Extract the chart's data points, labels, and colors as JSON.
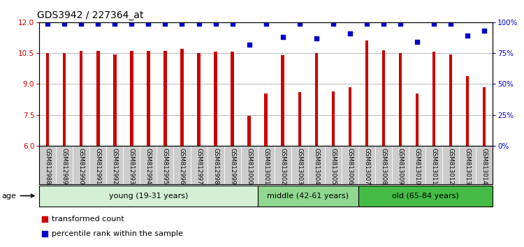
{
  "title": "GDS3942 / 227364_at",
  "samples": [
    "GSM812988",
    "GSM812989",
    "GSM812990",
    "GSM812991",
    "GSM812992",
    "GSM812993",
    "GSM812994",
    "GSM812995",
    "GSM812996",
    "GSM812997",
    "GSM812998",
    "GSM812999",
    "GSM813000",
    "GSM813001",
    "GSM813002",
    "GSM813003",
    "GSM813004",
    "GSM813005",
    "GSM813006",
    "GSM813007",
    "GSM813008",
    "GSM813009",
    "GSM813010",
    "GSM813011",
    "GSM813012",
    "GSM813013",
    "GSM813014"
  ],
  "bar_values": [
    10.5,
    10.5,
    10.62,
    10.62,
    10.44,
    10.62,
    10.62,
    10.62,
    10.72,
    10.52,
    10.56,
    10.56,
    7.45,
    8.55,
    10.4,
    8.6,
    10.5,
    8.65,
    8.85,
    11.1,
    10.65,
    10.5,
    8.55,
    10.56,
    10.44,
    9.38,
    8.85
  ],
  "percentile_values": [
    99,
    99,
    99,
    99,
    99,
    99,
    99,
    99,
    99,
    99,
    99,
    99,
    82,
    99,
    88,
    99,
    87,
    99,
    91,
    99,
    99,
    99,
    84,
    99,
    99,
    89,
    93
  ],
  "bar_color": "#cc0000",
  "dot_color": "#0000cc",
  "ylim_left": [
    6,
    12
  ],
  "ylim_right": [
    0,
    100
  ],
  "yticks_left": [
    6,
    7.5,
    9,
    10.5,
    12
  ],
  "yticks_right": [
    0,
    25,
    50,
    75,
    100
  ],
  "ytick_labels_right": [
    "0%",
    "25%",
    "50%",
    "75%",
    "100%"
  ],
  "groups": [
    {
      "label": "young (19-31 years)",
      "start": 0,
      "end": 13,
      "color": "#d4f0d4"
    },
    {
      "label": "middle (42-61 years)",
      "start": 13,
      "end": 19,
      "color": "#90d890"
    },
    {
      "label": "old (65-84 years)",
      "start": 19,
      "end": 27,
      "color": "#44bb44"
    }
  ],
  "xtick_bg_color": "#cccccc",
  "age_label": "age",
  "legend_bar_label": "transformed count",
  "legend_dot_label": "percentile rank within the sample",
  "title_fontsize": 10,
  "tick_fontsize": 7.5,
  "bar_width": 0.18
}
